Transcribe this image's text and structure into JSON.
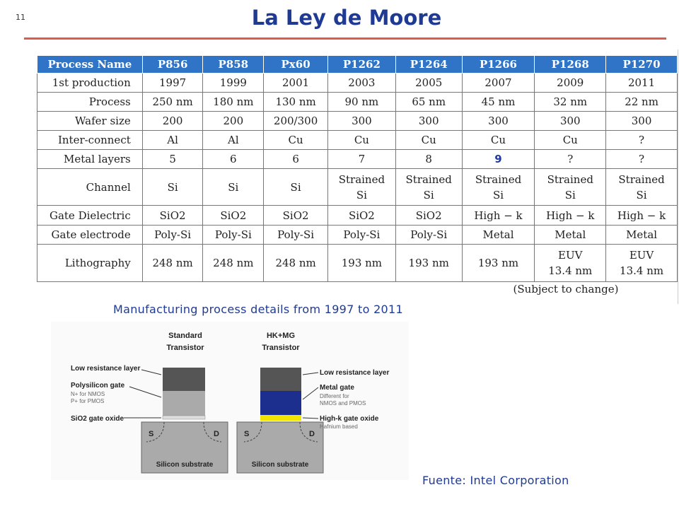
{
  "slide_number": "11",
  "title": "La Ley de Moore",
  "table": {
    "header": [
      "Process Name",
      "P856",
      "P858",
      "Px60",
      "P1262",
      "P1264",
      "P1266",
      "P1268",
      "P1270"
    ],
    "rows": [
      {
        "label": "1st production",
        "cells": [
          "1997",
          "1999",
          "2001",
          "2003",
          "2005",
          "2007",
          "2009",
          "2011"
        ]
      },
      {
        "label": "Process",
        "cells": [
          "250 nm",
          "180 nm",
          "130 nm",
          "90 nm",
          "65 nm",
          "45 nm",
          "32 nm",
          "22 nm"
        ]
      },
      {
        "label": "Wafer size",
        "cells": [
          "200",
          "200",
          "200/300",
          "300",
          "300",
          "300",
          "300",
          "300"
        ]
      },
      {
        "label": "Inter-connect",
        "cells": [
          "Al",
          "Al",
          "Cu",
          "Cu",
          "Cu",
          "Cu",
          "Cu",
          "?"
        ]
      },
      {
        "label": "Metal layers",
        "cells": [
          "5",
          "6",
          "6",
          "7",
          "8",
          "9",
          "?",
          "?"
        ]
      },
      {
        "label": "Channel",
        "cells": [
          "Si",
          "Si",
          "Si",
          "Strained\nSi",
          "Strained\nSi",
          "Strained\nSi",
          "Strained\nSi",
          "Strained\nSi"
        ]
      },
      {
        "label": "Gate Dielectric",
        "cells": [
          "SiO2",
          "SiO2",
          "SiO2",
          "SiO2",
          "SiO2",
          "High − k",
          "High − k",
          "High − k"
        ]
      },
      {
        "label": "Gate electrode",
        "cells": [
          "Poly-Si",
          "Poly-Si",
          "Poly-Si",
          "Poly-Si",
          "Poly-Si",
          "Metal",
          "Metal",
          "Metal"
        ]
      },
      {
        "label": "Lithography",
        "cells": [
          "248 nm",
          "248 nm",
          "248 nm",
          "193 nm",
          "193 nm",
          "193 nm",
          "EUV\n13.4 nm",
          "EUV\n13.4 nm"
        ]
      }
    ],
    "note": "(Subject to change)"
  },
  "caption": "Manufacturing process details from 1997 to 2011",
  "diagram": {
    "standard": {
      "heading": [
        "Standard",
        "Transistor"
      ],
      "labels": [
        "Low resistance layer",
        "Polysilicon gate",
        "N+ for NMOS",
        "P+ for PMOS",
        "SiO2 gate oxide"
      ],
      "source": "S",
      "drain": "D",
      "substrate": "Silicon substrate"
    },
    "hkmg": {
      "heading": [
        "HK+MG",
        "Transistor"
      ],
      "labels": [
        "Low resistance layer",
        "Metal gate",
        "Different for",
        "NMOS and PMOS",
        "High-k gate oxide",
        "Hafnium based"
      ],
      "source": "S",
      "drain": "D",
      "substrate": "Silicon substrate"
    }
  },
  "source": "Fuente: Intel Corporation"
}
